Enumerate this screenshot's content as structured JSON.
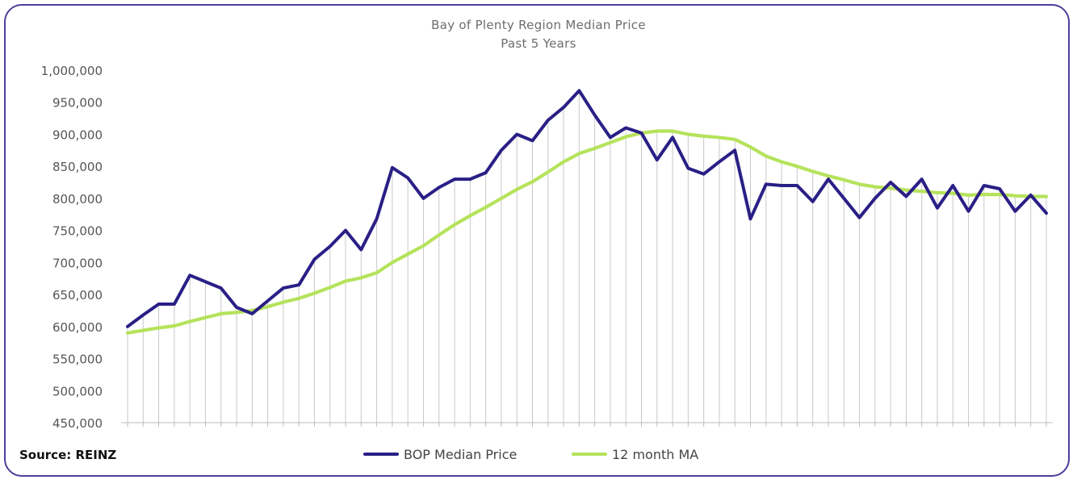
{
  "chart_data": {
    "type": "line",
    "title": "Bay of Plenty Region Median Price",
    "subtitle": "Past 5 Years",
    "xlabel": "",
    "ylabel": "",
    "ylim": [
      450000,
      1000000
    ],
    "y_ticks": [
      "1,000,000",
      "950,000",
      "900,000",
      "850,000",
      "800,000",
      "750,000",
      "700,000",
      "650,000",
      "600,000",
      "550,000",
      "500,000",
      "450,000"
    ],
    "x_tick_labels": "none",
    "grid": "vertical drop lines at each month",
    "legend_position": "bottom",
    "series": [
      {
        "name": "BOP Median Price",
        "color": "#2a1f86",
        "values": [
          600000,
          618000,
          635000,
          635000,
          680000,
          670000,
          660000,
          630000,
          620000,
          640000,
          660000,
          665000,
          705000,
          725000,
          750000,
          720000,
          768000,
          848000,
          832000,
          800000,
          817000,
          830000,
          830000,
          840000,
          875000,
          900000,
          890000,
          922000,
          942000,
          968000,
          930000,
          895000,
          910000,
          902000,
          860000,
          895000,
          847000,
          838000,
          857000,
          875000,
          768000,
          822000,
          820000,
          820000,
          795000,
          830000,
          800000,
          770000,
          800000,
          825000,
          803000,
          830000,
          785000,
          820000,
          780000,
          820000,
          815000,
          780000,
          805000,
          777000
        ]
      },
      {
        "name": "12 month MA",
        "color": "#b5e35c",
        "values": [
          590000,
          594000,
          598000,
          601000,
          608000,
          614000,
          620000,
          622000,
          625000,
          631000,
          638000,
          644000,
          652000,
          661000,
          671000,
          676000,
          684000,
          700000,
          713000,
          726000,
          743000,
          759000,
          773000,
          786000,
          800000,
          814000,
          826000,
          841000,
          857000,
          870000,
          878000,
          887000,
          896000,
          902000,
          905000,
          905000,
          900000,
          897000,
          895000,
          892000,
          880000,
          866000,
          857000,
          850000,
          842000,
          835000,
          829000,
          822000,
          818000,
          816000,
          813000,
          811000,
          809000,
          808000,
          805000,
          806000,
          806000,
          804000,
          803000,
          803000
        ]
      }
    ]
  },
  "source_label": "Source: REINZ",
  "legend": [
    {
      "label": "BOP Median Price",
      "color": "#2a1f86"
    },
    {
      "label": "12 month MA",
      "color": "#b5e35c"
    }
  ]
}
